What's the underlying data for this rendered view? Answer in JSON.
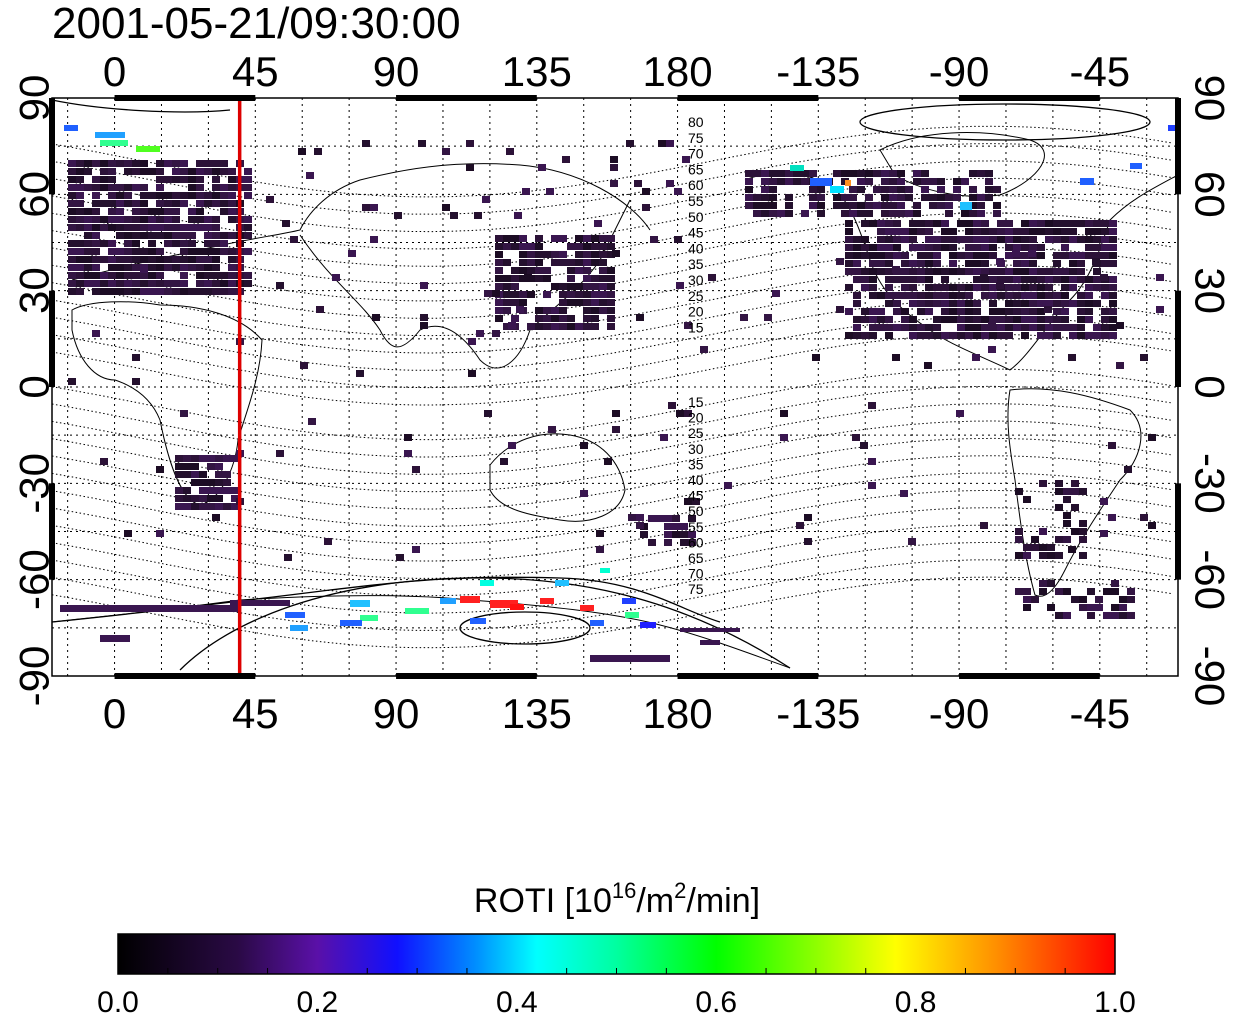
{
  "title": "2001-05-21/09:30:00",
  "map": {
    "x_ticks_top": [
      "0",
      "45",
      "90",
      "135",
      "180",
      "-135",
      "-90",
      "-45"
    ],
    "x_ticks_bottom": [
      "0",
      "45",
      "90",
      "135",
      "180",
      "-135",
      "-90",
      "-45"
    ],
    "y_ticks_left": [
      "90",
      "60",
      "30",
      "0",
      "-30",
      "-60",
      "-90"
    ],
    "y_ticks_right": [
      "90",
      "60",
      "30",
      "0",
      "-30",
      "-60",
      "-90"
    ],
    "marker_longitude": 40,
    "marker_color": "#dd0000",
    "mlat_labels_north": [
      "80",
      "75",
      "70",
      "65",
      "60",
      "55",
      "50",
      "45",
      "40",
      "35",
      "30",
      "25",
      "20",
      "15"
    ],
    "mlat_labels_south": [
      "15",
      "20",
      "25",
      "30",
      "35",
      "40",
      "45",
      "50",
      "55",
      "60",
      "65",
      "70",
      "75"
    ]
  },
  "colorbar": {
    "label_text": "ROTI  [10",
    "label_sup1": "16",
    "label_mid": "/m",
    "label_sup2": "2",
    "label_end": "/min]",
    "ticks": [
      "0.0",
      "0.2",
      "0.4",
      "0.6",
      "0.8",
      "1.0"
    ],
    "min": 0.0,
    "max": 1.0,
    "colors": [
      "#000000",
      "#3a0a5a",
      "#5a0aa0",
      "#0000ff",
      "#00c8ff",
      "#00ffd0",
      "#00ff00",
      "#ffff00",
      "#ff8000",
      "#ff0000"
    ]
  }
}
